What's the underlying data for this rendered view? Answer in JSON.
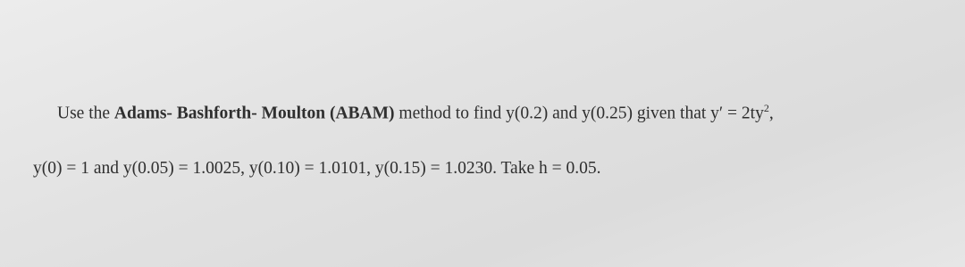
{
  "lines": [
    [
      "Use the ",
      "Adams- Bashforth- Moulton (ABAM)",
      " method to find  y(0.2)  and  y(0.25)  given that  y′ = 2ty",
      "2",
      ","
    ],
    [
      "y(0) = 1  and  y(0.05) = 1.0025,  y(0.10) = 1.0101,  y(0.15) = 1.0230.  Take  h = 0.05."
    ]
  ]
}
